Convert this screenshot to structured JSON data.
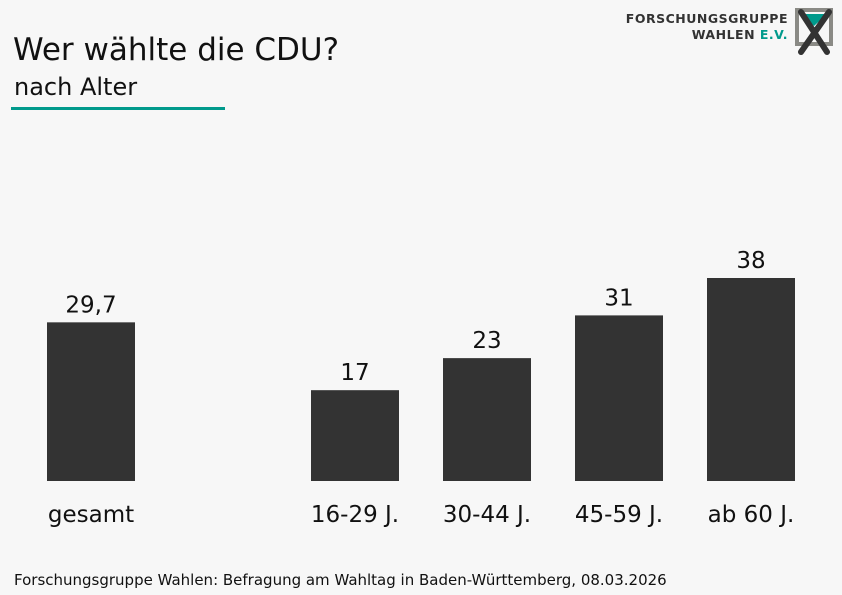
{
  "header": {
    "title": "Wer wählte die CDU?",
    "subtitle": "nach Alter"
  },
  "logo": {
    "line1": "FORSCHUNGSGRUPPE",
    "line2": "WAHLEN",
    "line2_suffix": "E.V."
  },
  "footer": {
    "source": "Forschungsgruppe Wahlen: Befragung am Wahltag in Baden-Württemberg, 08.03.2026"
  },
  "colors": {
    "bar": "#333333",
    "accent": "#009a8c"
  },
  "chart_data": {
    "type": "bar",
    "title": "Wer wählte die CDU?",
    "subtitle": "nach Alter",
    "categories": [
      "gesamt",
      "16-29 J.",
      "30-44 J.",
      "45-59 J.",
      "ab 60 J."
    ],
    "values": [
      29.7,
      17,
      23,
      31,
      38
    ],
    "value_labels": [
      "29,7",
      "17",
      "23",
      "31",
      "38"
    ],
    "xlabel": "",
    "ylabel": "",
    "ylim": [
      0,
      38
    ],
    "grid": false
  }
}
